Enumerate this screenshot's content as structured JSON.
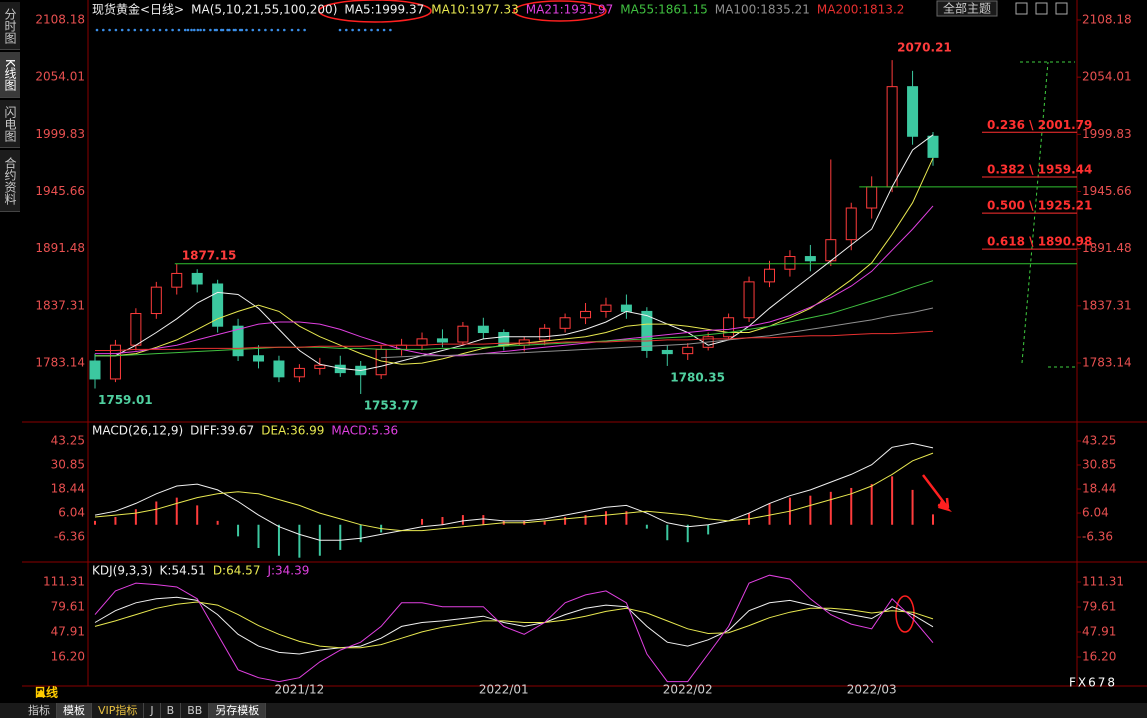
{
  "ui": {
    "side_tabs": [
      "分时图",
      "K线图",
      "闪电图",
      "合约资料"
    ],
    "theme_select": "全部主题",
    "period": "日线",
    "bottom_tabs": [
      "指标",
      "模板",
      "VIP指标",
      "J",
      "B",
      "BB",
      "另存模板"
    ],
    "watermark": "FX678"
  },
  "chart_data": [
    {
      "type": "candlestick",
      "title": "现货黄金<日线>",
      "indicator": "MA(5,10,21,55,100,200)",
      "categories": [
        null,
        null,
        null,
        null,
        null,
        null,
        null,
        null,
        null,
        null,
        "2021/12",
        null,
        null,
        null,
        null,
        null,
        null,
        null,
        null,
        null,
        "2022/01",
        null,
        null,
        null,
        null,
        null,
        null,
        null,
        null,
        "2022/02",
        null,
        null,
        null,
        null,
        null,
        null,
        null,
        null,
        "2022/03",
        null,
        null,
        null
      ],
      "open": [
        1785,
        1768,
        1800,
        1830,
        1855,
        1868,
        1858,
        1818,
        1790,
        1785,
        1770,
        1778,
        1781,
        1780,
        1772,
        1796,
        1800,
        1806,
        1803,
        1818,
        1812,
        1800,
        1805,
        1816,
        1826,
        1832,
        1838,
        1832,
        1795,
        1792,
        1798,
        1808,
        1826,
        1860,
        1872,
        1884,
        1880,
        1900,
        1930,
        1950,
        2045,
        1998
      ],
      "high": [
        1792,
        1805,
        1835,
        1860,
        1877.15,
        1872,
        1862,
        1825,
        1800,
        1790,
        1782,
        1788,
        1790,
        1785,
        1800,
        1806,
        1812,
        1815,
        1822,
        1826,
        1815,
        1808,
        1820,
        1830,
        1840,
        1845,
        1848,
        1836,
        1800,
        1802,
        1812,
        1830,
        1865,
        1880,
        1890,
        1895,
        1976,
        1935,
        1960,
        2070.21,
        2060,
        2002
      ],
      "low": [
        1759.01,
        1765,
        1795,
        1825,
        1848,
        1850,
        1812,
        1785,
        1778,
        1765,
        1765,
        1772,
        1770,
        1753.77,
        1768,
        1790,
        1795,
        1798,
        1800,
        1806,
        1795,
        1794,
        1800,
        1812,
        1820,
        1826,
        1825,
        1788,
        1780.35,
        1786,
        1795,
        1805,
        1822,
        1855,
        1865,
        1870,
        1875,
        1890,
        1920,
        1945,
        1990,
        1970
      ],
      "close": [
        1768,
        1800,
        1830,
        1855,
        1868,
        1858,
        1818,
        1790,
        1785,
        1770,
        1778,
        1781,
        1774,
        1772,
        1796,
        1800,
        1806,
        1803,
        1818,
        1812,
        1800,
        1805,
        1816,
        1826,
        1832,
        1838,
        1832,
        1795,
        1792,
        1798,
        1808,
        1826,
        1860,
        1872,
        1884,
        1880,
        1900,
        1930,
        1950,
        2045,
        1998,
        1978
      ],
      "up_color": "#ff3c3c",
      "down_color": "#3cc8a0",
      "series": [
        {
          "name": "MA5:1999.37",
          "color": "#f0f0f0",
          "values": [
            1790,
            1790,
            1800,
            1812,
            1825,
            1840,
            1850,
            1848,
            1835,
            1815,
            1795,
            1782,
            1778,
            1776,
            1780,
            1785,
            1790,
            1795,
            1800,
            1806,
            1808,
            1808,
            1808,
            1810,
            1815,
            1822,
            1832,
            1828,
            1820,
            1812,
            1800,
            1805,
            1818,
            1835,
            1850,
            1865,
            1880,
            1895,
            1910,
            1950,
            1985,
            1999.37
          ]
        },
        {
          "name": "MA10:1977.33",
          "color": "#e8e850",
          "values": [
            1790,
            1790,
            1792,
            1798,
            1805,
            1815,
            1825,
            1832,
            1838,
            1832,
            1818,
            1808,
            1800,
            1792,
            1785,
            1782,
            1783,
            1787,
            1792,
            1797,
            1800,
            1802,
            1804,
            1806,
            1808,
            1812,
            1818,
            1820,
            1820,
            1818,
            1815,
            1812,
            1812,
            1818,
            1826,
            1835,
            1848,
            1862,
            1878,
            1905,
            1935,
            1977.33
          ]
        },
        {
          "name": "MA21:1931.97",
          "color": "#e040e0",
          "values": [
            1792,
            1792,
            1794,
            1797,
            1800,
            1805,
            1810,
            1815,
            1820,
            1822,
            1822,
            1820,
            1815,
            1808,
            1802,
            1796,
            1792,
            1790,
            1790,
            1792,
            1794,
            1796,
            1798,
            1800,
            1802,
            1804,
            1806,
            1808,
            1810,
            1812,
            1814,
            1815,
            1818,
            1822,
            1828,
            1836,
            1845,
            1856,
            1870,
            1890,
            1910,
            1931.97
          ]
        },
        {
          "name": "MA55:1861.15",
          "color": "#40c040",
          "values": [
            1790,
            1790,
            1791,
            1792,
            1793,
            1794,
            1795,
            1796,
            1797,
            1798,
            1798,
            1798,
            1797,
            1797,
            1796,
            1796,
            1796,
            1797,
            1797,
            1798,
            1799,
            1800,
            1801,
            1802,
            1803,
            1804,
            1805,
            1806,
            1807,
            1808,
            1810,
            1812,
            1815,
            1818,
            1822,
            1826,
            1830,
            1836,
            1842,
            1848,
            1855,
            1861.15
          ]
        },
        {
          "name": "MA100:1835.21",
          "color": "#909090",
          "values": [
            null,
            null,
            null,
            null,
            null,
            null,
            null,
            null,
            null,
            null,
            null,
            null,
            null,
            null,
            1788,
            1789,
            1790,
            1790,
            1791,
            1792,
            1792,
            1793,
            1794,
            1795,
            1796,
            1797,
            1798,
            1799,
            1800,
            1801,
            1803,
            1805,
            1807,
            1809,
            1812,
            1815,
            1818,
            1821,
            1824,
            1828,
            1831,
            1835.21
          ]
        },
        {
          "name": "MA200:1813.2",
          "color": "#e83030",
          "values": [
            1795,
            1795,
            1796,
            1796,
            1796,
            1797,
            1797,
            1797,
            1798,
            1798,
            1798,
            1799,
            1799,
            1799,
            1800,
            1800,
            1800,
            1801,
            1801,
            1801,
            1802,
            1802,
            1802,
            1803,
            1803,
            1803,
            1804,
            1804,
            1805,
            1805,
            1806,
            1806,
            1807,
            1807,
            1808,
            1809,
            1809,
            1810,
            1811,
            1811,
            1812,
            1813.2
          ]
        }
      ],
      "fib_levels": [
        {
          "value": 2001.79,
          "label": "0.236 \\ 2001.79"
        },
        {
          "value": 1959.44,
          "label": "0.382 \\ 1959.44"
        },
        {
          "value": 1925.21,
          "label": "0.500 \\ 1925.21"
        },
        {
          "value": 1890.98,
          "label": "0.618 \\ 1890.98"
        }
      ],
      "ylim": [
        1729.1,
        2108.18
      ],
      "yticks": [
        2108.18,
        2054.01,
        1999.83,
        1945.66,
        1891.48,
        1837.31,
        1783.14
      ],
      "grid": false
    },
    {
      "type": "bar",
      "indicator": "MACD(26,12,9)",
      "bar_name": "MACD:5.36",
      "bar_legend_color": "#e040e0",
      "up_color": "#ff3c3c",
      "down_color": "#3cc8a0",
      "values": [
        2,
        4,
        8,
        12,
        14,
        10,
        2,
        -6,
        -12,
        -16,
        -17,
        -16,
        -13,
        -9,
        -4,
        0,
        3,
        4,
        5,
        5,
        2,
        2,
        2,
        4,
        5,
        7,
        7,
        -2,
        -8,
        -9,
        -5,
        0,
        6,
        11,
        14,
        15,
        17,
        19,
        21,
        25,
        18,
        5.36
      ],
      "series": [
        {
          "name": "DIFF:39.67",
          "color": "#f0f0f0",
          "values": [
            5,
            7,
            11,
            16,
            20,
            21,
            18,
            12,
            5,
            -1,
            -5,
            -8,
            -8,
            -7,
            -5,
            -3,
            -1,
            0,
            2,
            3,
            2,
            2,
            3,
            5,
            7,
            9,
            10,
            6,
            1,
            -1,
            0,
            2,
            6,
            11,
            15,
            18,
            22,
            26,
            31,
            40,
            42,
            39.67
          ]
        },
        {
          "name": "DEA:36.99",
          "color": "#e8e850",
          "values": [
            4,
            5,
            6,
            8,
            11,
            14,
            16,
            17,
            16,
            13,
            10,
            6,
            3,
            0,
            -2,
            -3,
            -3,
            -2,
            -1,
            0,
            1,
            1,
            2,
            3,
            4,
            5,
            6,
            7,
            6,
            5,
            3,
            2,
            3,
            5,
            7,
            10,
            13,
            16,
            20,
            26,
            33,
            36.99
          ]
        }
      ],
      "ylim": [
        -18.2,
        51.5
      ],
      "yticks": [
        43.25,
        30.85,
        18.44,
        6.04,
        -6.36
      ],
      "grid": false
    },
    {
      "type": "line",
      "indicator": "KDJ(9,3,3)",
      "series": [
        {
          "name": "K:54.51",
          "color": "#f0f0f0",
          "values": [
            60,
            75,
            85,
            90,
            92,
            88,
            70,
            45,
            30,
            22,
            20,
            25,
            28,
            30,
            40,
            55,
            60,
            62,
            65,
            68,
            60,
            55,
            60,
            70,
            78,
            82,
            80,
            55,
            35,
            30,
            38,
            50,
            75,
            85,
            88,
            82,
            75,
            70,
            65,
            80,
            70,
            54.51
          ]
        },
        {
          "name": "D:64.57",
          "color": "#e8e850",
          "values": [
            55,
            62,
            70,
            78,
            83,
            86,
            82,
            70,
            56,
            45,
            36,
            30,
            28,
            28,
            32,
            40,
            48,
            54,
            58,
            62,
            62,
            60,
            60,
            63,
            68,
            74,
            78,
            72,
            62,
            52,
            46,
            47,
            56,
            66,
            73,
            78,
            78,
            76,
            72,
            75,
            73,
            64.57
          ]
        },
        {
          "name": "J:34.39",
          "color": "#e040e0",
          "values": [
            70,
            100,
            110,
            108,
            105,
            90,
            45,
            0,
            -10,
            -15,
            -10,
            10,
            25,
            35,
            55,
            85,
            85,
            80,
            80,
            80,
            55,
            45,
            60,
            85,
            95,
            100,
            85,
            20,
            -15,
            -15,
            20,
            55,
            110,
            120,
            115,
            90,
            70,
            58,
            52,
            90,
            65,
            34.39
          ]
        }
      ],
      "ylim": [
        -19.3,
        132.9
      ],
      "yticks": [
        111.31,
        79.61,
        47.91,
        {
          "value": 16.2,
          "label": "16.20"
        }
      ],
      "grid": false
    }
  ]
}
